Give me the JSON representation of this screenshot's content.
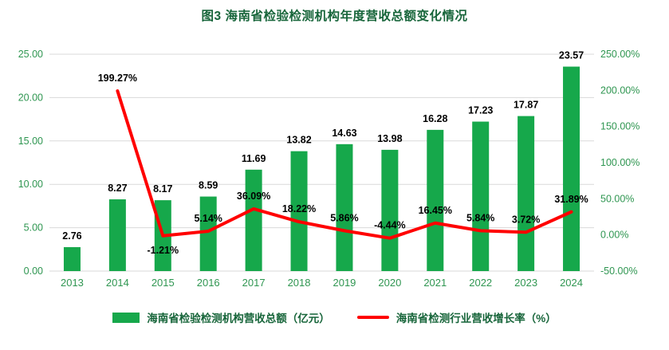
{
  "chart_data": {
    "type": "combo-bar-line",
    "title": "图3 海南省检验检测机构年度营收总额变化情况",
    "categories": [
      "2013",
      "2014",
      "2015",
      "2016",
      "2017",
      "2018",
      "2019",
      "2020",
      "2021",
      "2022",
      "2023",
      "2024"
    ],
    "series": [
      {
        "name": "海南省检验检测机构营收总额（亿元）",
        "type": "bar",
        "axis": "left",
        "color": "#16a84b",
        "values": [
          2.76,
          8.27,
          8.17,
          8.59,
          11.69,
          13.82,
          14.63,
          13.98,
          16.28,
          17.23,
          17.87,
          23.57
        ],
        "labels": [
          "2.76",
          "8.27",
          "8.17",
          "8.59",
          "11.69",
          "13.82",
          "14.63",
          "13.98",
          "16.28",
          "17.23",
          "17.87",
          "23.57"
        ]
      },
      {
        "name": "海南省检测行业营收增长率（%）",
        "type": "line",
        "axis": "right",
        "color": "#ff0000",
        "values": [
          null,
          199.27,
          -1.21,
          5.14,
          36.09,
          18.22,
          5.86,
          -4.44,
          16.45,
          5.84,
          3.72,
          31.89
        ],
        "labels": [
          "",
          "199.27%",
          "-1.21%",
          "5.14%",
          "36.09%",
          "18.22%",
          "5.86%",
          "-4.44%",
          "16.45%",
          "5.84%",
          "3.72%",
          "31.89%"
        ],
        "label_pos": [
          "",
          "above",
          "below",
          "above",
          "above",
          "above",
          "above",
          "above",
          "above",
          "above",
          "above",
          "above"
        ]
      }
    ],
    "left_axis": {
      "min": 0,
      "max": 25,
      "step": 5,
      "tick_labels": [
        "0.00",
        "5.00",
        "10.00",
        "15.00",
        "20.00",
        "25.00"
      ]
    },
    "right_axis": {
      "min": -50,
      "max": 250,
      "step": 50,
      "tick_labels": [
        "-50.00%",
        "0.00%",
        "50.00%",
        "100.00%",
        "150.00%",
        "200.00%",
        "250.00%"
      ]
    },
    "grid": true,
    "legend_position": "bottom"
  },
  "colors": {
    "title": "#17653a",
    "tick": "#2f9651",
    "legend_text": "#17653a",
    "gridline": "#d9d9d9",
    "data_label": "#000000",
    "background": "#ffffff"
  }
}
